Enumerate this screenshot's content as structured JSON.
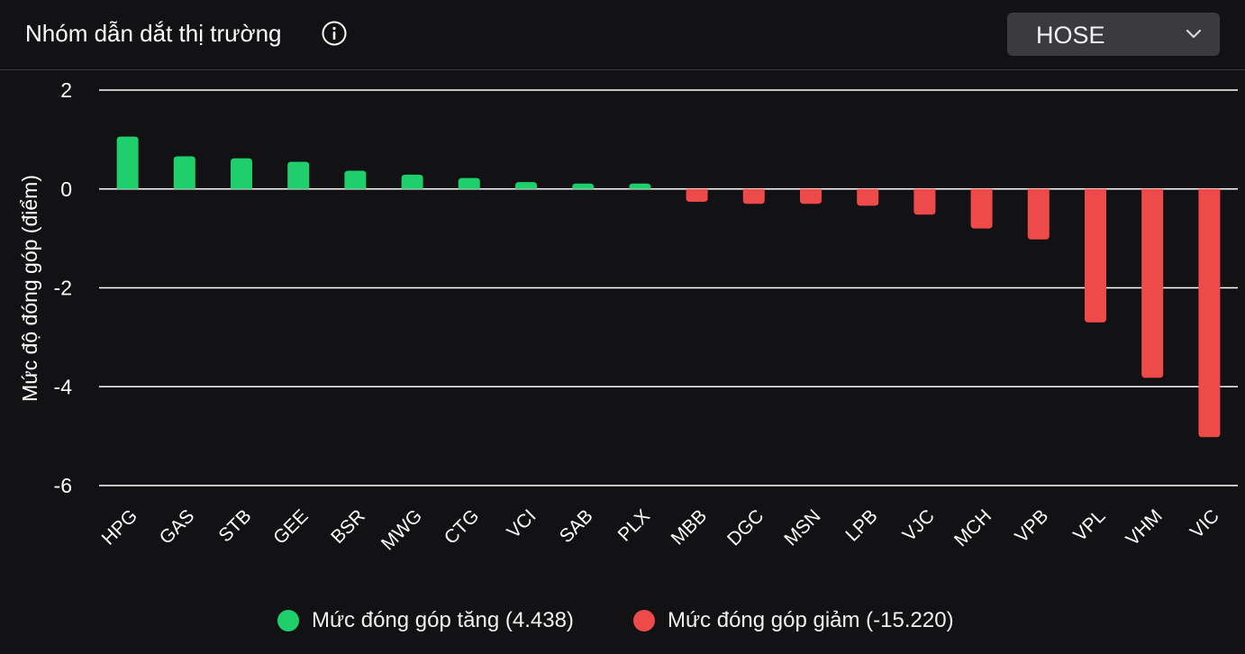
{
  "header": {
    "title": "Nhóm dẫn dắt thị trường",
    "info_icon": "info-circle-icon",
    "exchange_select": {
      "value": "HOSE",
      "icon": "chevron-down-icon"
    }
  },
  "colors": {
    "background": "#121214",
    "increase": "#1ecf6b",
    "decrease": "#ee4a4a",
    "grid": "#ffffff"
  },
  "chart_data": {
    "type": "bar",
    "title": "",
    "ylabel": "Mức độ đóng góp (điểm)",
    "xlabel": "",
    "ylim": [
      -6,
      2
    ],
    "yticks": [
      2,
      0,
      -2,
      -4,
      -6
    ],
    "grid": true,
    "legend_position": "bottom",
    "categories": [
      "HPG",
      "GAS",
      "STB",
      "GEE",
      "BSR",
      "MWG",
      "CTG",
      "VCI",
      "SAB",
      "PLX",
      "MBB",
      "DGC",
      "MSN",
      "LPB",
      "VJC",
      "MCH",
      "VPB",
      "VPL",
      "VHM",
      "VIC"
    ],
    "values": [
      1.06,
      0.66,
      0.62,
      0.55,
      0.37,
      0.29,
      0.22,
      0.14,
      0.11,
      0.11,
      -0.26,
      -0.3,
      -0.3,
      -0.34,
      -0.52,
      -0.8,
      -1.02,
      -2.7,
      -3.82,
      -5.02
    ],
    "series": [
      {
        "name": "Mức đóng góp tăng (4.438)",
        "color": "#1ecf6b"
      },
      {
        "name": "Mức đóng góp giảm (-15.220)",
        "color": "#ee4a4a"
      }
    ]
  }
}
